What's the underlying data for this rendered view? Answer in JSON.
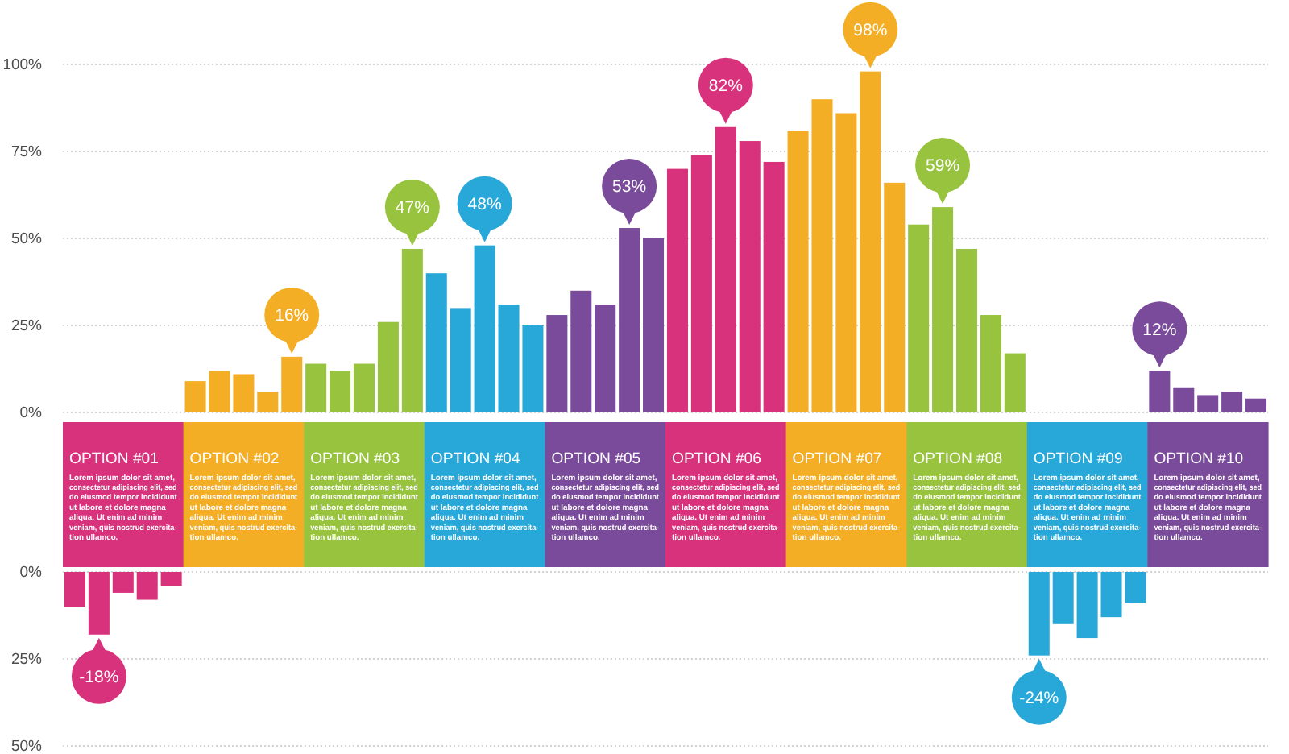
{
  "chart_data": [
    {
      "type": "bar",
      "categories": [
        null,
        null,
        null,
        null,
        null,
        null,
        null,
        null,
        null,
        null,
        null,
        null,
        null,
        null,
        null,
        null,
        null,
        null,
        null,
        null,
        null,
        null,
        null,
        null,
        null,
        null,
        null,
        null,
        null,
        null,
        null,
        null,
        null,
        null,
        null,
        null,
        null,
        null,
        null,
        null,
        null,
        null,
        null,
        null,
        null,
        null,
        null,
        null,
        null,
        null
      ],
      "values": [
        null,
        null,
        null,
        null,
        null,
        9,
        12,
        11,
        6,
        16,
        14,
        12,
        14,
        26,
        47,
        40,
        30,
        48,
        31,
        25,
        28,
        35,
        31,
        53,
        50,
        70,
        74,
        82,
        78,
        72,
        81,
        90,
        86,
        98,
        66,
        54,
        59,
        47,
        28,
        17,
        null,
        null,
        null,
        null,
        null,
        12,
        7,
        5,
        6,
        4
      ],
      "colors": [
        null,
        null,
        null,
        null,
        null,
        "#f3ae25",
        "#f3ae25",
        "#f3ae25",
        "#f3ae25",
        "#f3ae25",
        "#97c33e",
        "#97c33e",
        "#97c33e",
        "#97c33e",
        "#97c33e",
        "#28a8d9",
        "#28a8d9",
        "#28a8d9",
        "#28a8d9",
        "#28a8d9",
        "#7b4b9b",
        "#7b4b9b",
        "#7b4b9b",
        "#7b4b9b",
        "#7b4b9b",
        "#d8327c",
        "#d8327c",
        "#d8327c",
        "#d8327c",
        "#d8327c",
        "#f3ae25",
        "#f3ae25",
        "#f3ae25",
        "#f3ae25",
        "#f3ae25",
        "#97c33e",
        "#97c33e",
        "#97c33e",
        "#97c33e",
        "#97c33e",
        null,
        null,
        null,
        null,
        null,
        "#7b4b9b",
        "#7b4b9b",
        "#7b4b9b",
        "#7b4b9b",
        "#7b4b9b"
      ],
      "value_labels": [
        null,
        null,
        null,
        null,
        null,
        null,
        null,
        null,
        null,
        "16%",
        null,
        null,
        null,
        null,
        "47%",
        null,
        null,
        "48%",
        null,
        null,
        null,
        null,
        null,
        "53%",
        null,
        null,
        null,
        "82%",
        null,
        null,
        null,
        null,
        null,
        "98%",
        null,
        null,
        "59%",
        null,
        null,
        null,
        null,
        null,
        null,
        null,
        null,
        "12%",
        null,
        null,
        null,
        null
      ],
      "ylim": [
        0,
        100
      ],
      "yticks": [
        {
          "value": 0,
          "label": "0%"
        },
        {
          "value": 25,
          "label": "25%"
        },
        {
          "value": 50,
          "label": "50%"
        },
        {
          "value": 75,
          "label": "75%"
        },
        {
          "value": 100,
          "label": "100%"
        }
      ],
      "grid": "y",
      "tick_labels": "y"
    },
    {
      "type": "other",
      "categories": [
        "OPTION #01",
        "OPTION #02",
        "OPTION #03",
        "OPTION #04",
        "OPTION #05",
        "OPTION #06",
        "OPTION #07",
        "OPTION #08",
        "OPTION #09",
        "OPTION #10"
      ],
      "colors": [
        "#d8327c",
        "#f3ae25",
        "#97c33e",
        "#28a8d9",
        "#7b4b9b",
        "#d8327c",
        "#f3ae25",
        "#97c33e",
        "#28a8d9",
        "#7b4b9b"
      ],
      "annotations": [
        "Lorem ipsum dolor sit amet,\nconsectetur adipiscing elit, sed\ndo eiusmod tempor incididunt\nut labore et dolore magna\naliqua. Ut enim ad minim\nveniam, quis nostrud exercita-\ntion ullamco.",
        "Lorem ipsum dolor sit amet,\nconsectetur adipiscing elit, sed\ndo eiusmod tempor incididunt\nut labore et dolore magna\naliqua. Ut enim ad minim\nveniam, quis nostrud exercita-\ntion ullamco.",
        "Lorem ipsum dolor sit amet,\nconsectetur adipiscing elit, sed\ndo eiusmod tempor incididunt\nut labore et dolore magna\naliqua. Ut enim ad minim\nveniam, quis nostrud exercita-\ntion ullamco.",
        "Lorem ipsum dolor sit amet,\nconsectetur adipiscing elit, sed\ndo eiusmod tempor incididunt\nut labore et dolore magna\naliqua. Ut enim ad minim\nveniam, quis nostrud exercita-\ntion ullamco.",
        "Lorem ipsum dolor sit amet,\nconsectetur adipiscing elit, sed\ndo eiusmod tempor incididunt\nut labore et dolore magna\naliqua. Ut enim ad minim\nveniam, quis nostrud exercita-\ntion ullamco.",
        "Lorem ipsum dolor sit amet,\nconsectetur adipiscing elit, sed\ndo eiusmod tempor incididunt\nut labore et dolore magna\naliqua. Ut enim ad minim\nveniam, quis nostrud exercita-\ntion ullamco.",
        "Lorem ipsum dolor sit amet,\nconsectetur adipiscing elit, sed\ndo eiusmod tempor incididunt\nut labore et dolore magna\naliqua. Ut enim ad minim\nveniam, quis nostrud exercita-\ntion ullamco.",
        "Lorem ipsum dolor sit amet,\nconsectetur adipiscing elit, sed\ndo eiusmod tempor incididunt\nut labore et dolore magna\naliqua. Ut enim ad minim\nveniam, quis nostrud exercita-\ntion ullamco.",
        "Lorem ipsum dolor sit amet,\nconsectetur adipiscing elit, sed\ndo eiusmod tempor incididunt\nut labore et dolore magna\naliqua. Ut enim ad minim\nveniam, quis nostrud exercita-\ntion ullamco.",
        "Lorem ipsum dolor sit amet,\nconsectetur adipiscing elit, sed\ndo eiusmod tempor incididunt\nut labore et dolore magna\naliqua. Ut enim ad minim\nveniam, quis nostrud exercita-\ntion ullamco."
      ]
    },
    {
      "type": "bar",
      "categories": [
        null,
        null,
        null,
        null,
        null,
        null,
        null,
        null,
        null,
        null,
        null,
        null,
        null,
        null,
        null,
        null,
        null,
        null,
        null,
        null,
        null,
        null,
        null,
        null,
        null,
        null,
        null,
        null,
        null,
        null,
        null,
        null,
        null,
        null,
        null,
        null,
        null,
        null,
        null,
        null,
        null,
        null,
        null,
        null,
        null,
        null,
        null,
        null,
        null,
        null
      ],
      "values": [
        -10,
        -18,
        -6,
        -8,
        -4,
        null,
        null,
        null,
        null,
        null,
        null,
        null,
        null,
        null,
        null,
        null,
        null,
        null,
        null,
        null,
        null,
        null,
        null,
        null,
        null,
        null,
        null,
        null,
        null,
        null,
        null,
        null,
        null,
        null,
        null,
        null,
        null,
        null,
        null,
        null,
        -24,
        -15,
        -19,
        -13,
        -9,
        null,
        null,
        null,
        null,
        null
      ],
      "colors": [
        "#d8327c",
        "#d8327c",
        "#d8327c",
        "#d8327c",
        "#d8327c",
        null,
        null,
        null,
        null,
        null,
        null,
        null,
        null,
        null,
        null,
        null,
        null,
        null,
        null,
        null,
        null,
        null,
        null,
        null,
        null,
        null,
        null,
        null,
        null,
        null,
        null,
        null,
        null,
        null,
        null,
        null,
        null,
        null,
        null,
        null,
        "#28a8d9",
        "#28a8d9",
        "#28a8d9",
        "#28a8d9",
        "#28a8d9",
        null,
        null,
        null,
        null,
        null
      ],
      "value_labels": [
        null,
        "-18%",
        null,
        null,
        null,
        null,
        null,
        null,
        null,
        null,
        null,
        null,
        null,
        null,
        null,
        null,
        null,
        null,
        null,
        null,
        null,
        null,
        null,
        null,
        null,
        null,
        null,
        null,
        null,
        null,
        null,
        null,
        null,
        null,
        null,
        null,
        null,
        null,
        null,
        null,
        "-24%",
        null,
        null,
        null,
        null,
        null,
        null,
        null,
        null,
        null
      ],
      "ylim": [
        -50,
        0
      ],
      "yticks": [
        {
          "value": 0,
          "label": "0%"
        },
        {
          "value": -25,
          "label": "25%"
        },
        {
          "value": -50,
          "label": "50%"
        }
      ],
      "grid": "y",
      "tick_labels": "y"
    }
  ]
}
